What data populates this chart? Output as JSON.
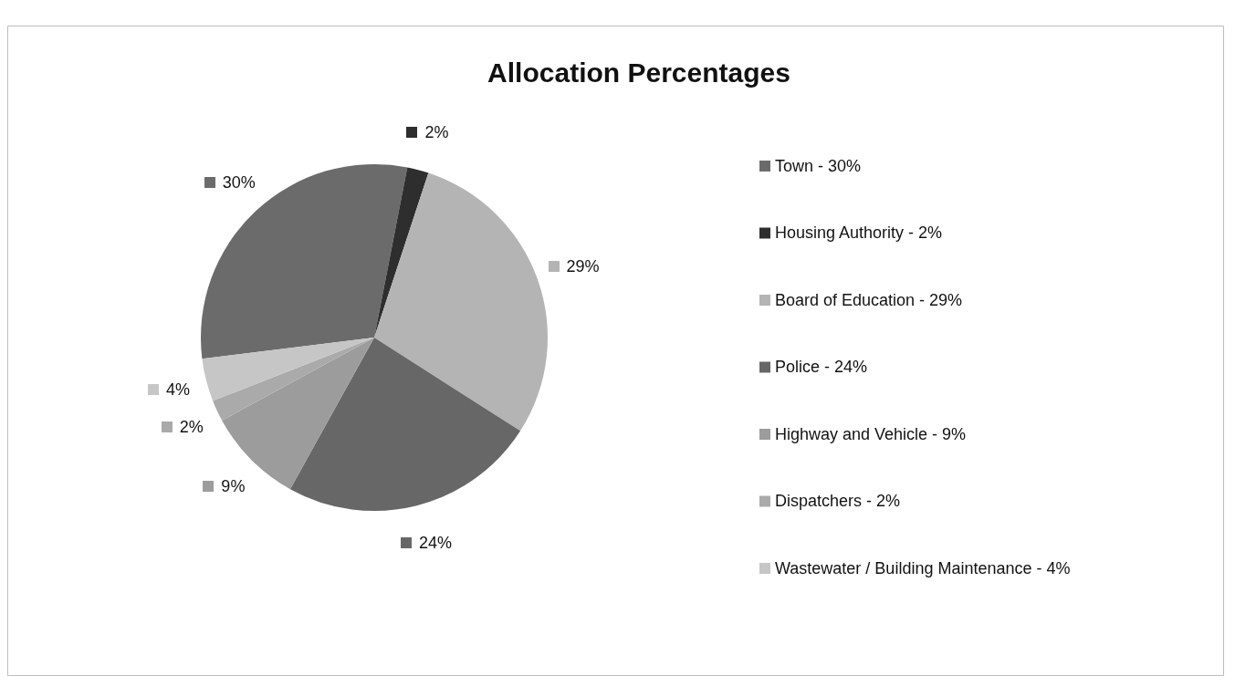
{
  "chart_data": {
    "type": "pie",
    "title": "Allocation Percentages",
    "categories": [
      "Town - 30%",
      "Housing Authority - 2%",
      "Board of Education - 29%",
      "Police - 24%",
      "Highway and Vehicle - 9%",
      "Dispatchers - 2%",
      "Wastewater / Building Maintenance - 4%"
    ],
    "values": [
      30,
      2,
      29,
      24,
      9,
      2,
      4
    ],
    "value_labels": [
      "30%",
      "2%",
      "29%",
      "24%",
      "9%",
      "2%",
      "4%"
    ],
    "colors": [
      "#6b6b6b",
      "#2e2e2e",
      "#b4b4b4",
      "#676767",
      "#9c9c9c",
      "#aaaaaa",
      "#c6c6c6"
    ],
    "legend": "right"
  }
}
